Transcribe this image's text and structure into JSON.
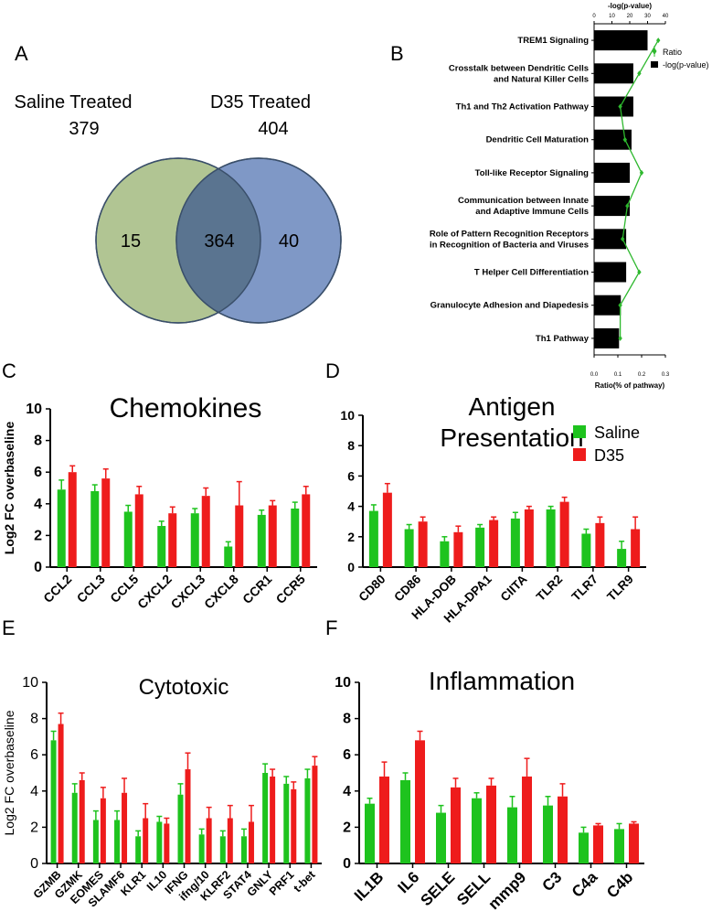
{
  "panels": {
    "A": "A",
    "B": "B",
    "C": "C",
    "D": "D",
    "E": "E",
    "F": "F"
  },
  "colors": {
    "saline": "#1ec31e",
    "d35": "#ee1c1c",
    "venn_left": "#b1c593",
    "venn_right": "#7f98c6",
    "venn_overlap": "#5a7490",
    "pathway_bar": "#000000",
    "ratio_line": "#2eb82e"
  },
  "chart_data": [
    {
      "id": "A",
      "type": "venn",
      "sets": [
        {
          "label": "Saline Treated",
          "total": "379",
          "unique": "15"
        },
        {
          "label": "D35 Treated",
          "total": "404",
          "unique": "40"
        }
      ],
      "overlap": "364"
    },
    {
      "id": "B",
      "type": "bar",
      "orientation": "horizontal",
      "categories": [
        "TREM1 Signaling",
        "Crosstalk between Dendritic Cells|and Natural Killer Cells",
        "Th1 and Th2 Activation Pathway",
        "Dendritic Cell Maturation",
        "Toll-like Receptor Signaling",
        "Communication between Innate|and Adaptive Immune Cells",
        "Role of Pattern Recognition Receptors|in Recognition of Bacteria and Viruses",
        "T Helper Cell Differentiation",
        "Granulocyte Adhesion and Diapedesis",
        "Th1 Pathway"
      ],
      "series": [
        {
          "name": "-log(p-value)",
          "axis": "top",
          "values": [
            30,
            22,
            22,
            21,
            20,
            20,
            18,
            18,
            15,
            14
          ]
        },
        {
          "name": "Ratio",
          "axis": "bottom",
          "values": [
            0.27,
            0.19,
            0.11,
            0.13,
            0.2,
            0.14,
            0.12,
            0.19,
            0.11,
            0.11
          ]
        }
      ],
      "top_axis": {
        "label": "-log(p-value)",
        "range": [
          0,
          40
        ],
        "ticks": [
          "0",
          "10",
          "20",
          "30",
          "40"
        ]
      },
      "bottom_axis": {
        "label": "Ratio(% of pathway)",
        "range": [
          0,
          0.3
        ],
        "ticks": [
          "0.0",
          "0.1",
          "0.2",
          "0.3"
        ]
      },
      "legend": [
        "Ratio",
        "-log(p-value)"
      ]
    },
    {
      "id": "C",
      "type": "bar",
      "title": "Chemokines",
      "ylabel": "Log2 FC overbaseline",
      "ylim": [
        0,
        10
      ],
      "yticks": [
        "0",
        "2",
        "4",
        "6",
        "8",
        "10"
      ],
      "categories": [
        "CCL2",
        "CCL3",
        "CCL5",
        "CXCL2",
        "CXCL3",
        "CXCL8",
        "CCR1",
        "CCR5"
      ],
      "series": [
        {
          "name": "Saline",
          "values": [
            4.9,
            4.8,
            3.5,
            2.6,
            3.4,
            1.3,
            3.3,
            3.7
          ],
          "errors": [
            0.6,
            0.4,
            0.4,
            0.3,
            0.3,
            0.3,
            0.3,
            0.4
          ]
        },
        {
          "name": "D35",
          "values": [
            6.0,
            5.6,
            4.6,
            3.4,
            4.5,
            3.9,
            3.9,
            4.6
          ],
          "errors": [
            0.4,
            0.6,
            0.5,
            0.4,
            0.5,
            1.5,
            0.3,
            0.5
          ]
        }
      ]
    },
    {
      "id": "D",
      "type": "bar",
      "title": "Antigen|Presentation",
      "ylim": [
        0,
        10
      ],
      "yticks": [
        "0",
        "2",
        "4",
        "6",
        "8",
        "10"
      ],
      "categories": [
        "CD80",
        "CD86",
        "HLA-DOB",
        "HLA-DPA1",
        "CIITA",
        "TLR2",
        "TLR7",
        "TLR9"
      ],
      "series": [
        {
          "name": "Saline",
          "values": [
            3.7,
            2.5,
            1.7,
            2.6,
            3.2,
            3.8,
            2.2,
            1.2
          ],
          "errors": [
            0.4,
            0.3,
            0.3,
            0.2,
            0.4,
            0.2,
            0.3,
            0.5
          ]
        },
        {
          "name": "D35",
          "values": [
            4.9,
            3.0,
            2.3,
            3.1,
            3.8,
            4.3,
            2.9,
            2.5
          ],
          "errors": [
            0.6,
            0.3,
            0.4,
            0.2,
            0.2,
            0.3,
            0.4,
            0.8
          ]
        }
      ],
      "legend": [
        "Saline",
        "D35"
      ]
    },
    {
      "id": "E",
      "type": "bar",
      "title": "Cytotoxic",
      "ylabel": "Log2 FC overbaseline",
      "ylim": [
        0,
        10
      ],
      "yticks": [
        "0",
        "2",
        "4",
        "6",
        "8",
        "10"
      ],
      "categories": [
        "GZMB",
        "GZMK",
        "EOMES",
        "SLAMF6",
        "KLR1",
        "IL10",
        "IFNG",
        "ifng/10",
        "KLRF2",
        "STAT4",
        "GNLY",
        "PRF1",
        "t-bet"
      ],
      "series": [
        {
          "name": "Saline",
          "values": [
            6.8,
            3.9,
            2.4,
            2.4,
            1.5,
            2.3,
            3.8,
            1.6,
            1.5,
            1.5,
            5.0,
            4.4,
            4.7
          ],
          "errors": [
            0.5,
            0.5,
            0.5,
            0.5,
            0.3,
            0.3,
            0.6,
            0.3,
            0.3,
            0.4,
            0.5,
            0.4,
            0.5
          ]
        },
        {
          "name": "D35",
          "values": [
            7.7,
            4.6,
            3.6,
            3.9,
            2.5,
            2.2,
            5.2,
            2.5,
            2.5,
            2.3,
            4.8,
            4.1,
            5.4
          ],
          "errors": [
            0.6,
            0.4,
            0.6,
            0.8,
            0.8,
            0.3,
            0.9,
            0.6,
            0.7,
            0.9,
            0.4,
            0.4,
            0.5
          ]
        }
      ]
    },
    {
      "id": "F",
      "type": "bar",
      "title": "Inflammation",
      "ylim": [
        0,
        10
      ],
      "yticks": [
        "0",
        "2",
        "4",
        "6",
        "8",
        "10"
      ],
      "categories": [
        "IL1B",
        "IL6",
        "SELE",
        "SELL",
        "mmp9",
        "C3",
        "C4a",
        "C4b"
      ],
      "series": [
        {
          "name": "Saline",
          "values": [
            3.3,
            4.6,
            2.8,
            3.6,
            3.1,
            3.2,
            1.7,
            1.9
          ],
          "errors": [
            0.3,
            0.4,
            0.4,
            0.3,
            0.6,
            0.5,
            0.3,
            0.3
          ]
        },
        {
          "name": "D35",
          "values": [
            4.8,
            6.8,
            4.2,
            4.3,
            4.8,
            3.7,
            2.1,
            2.2
          ],
          "errors": [
            0.8,
            0.5,
            0.5,
            0.4,
            1.0,
            0.7,
            0.1,
            0.1
          ]
        }
      ]
    }
  ]
}
